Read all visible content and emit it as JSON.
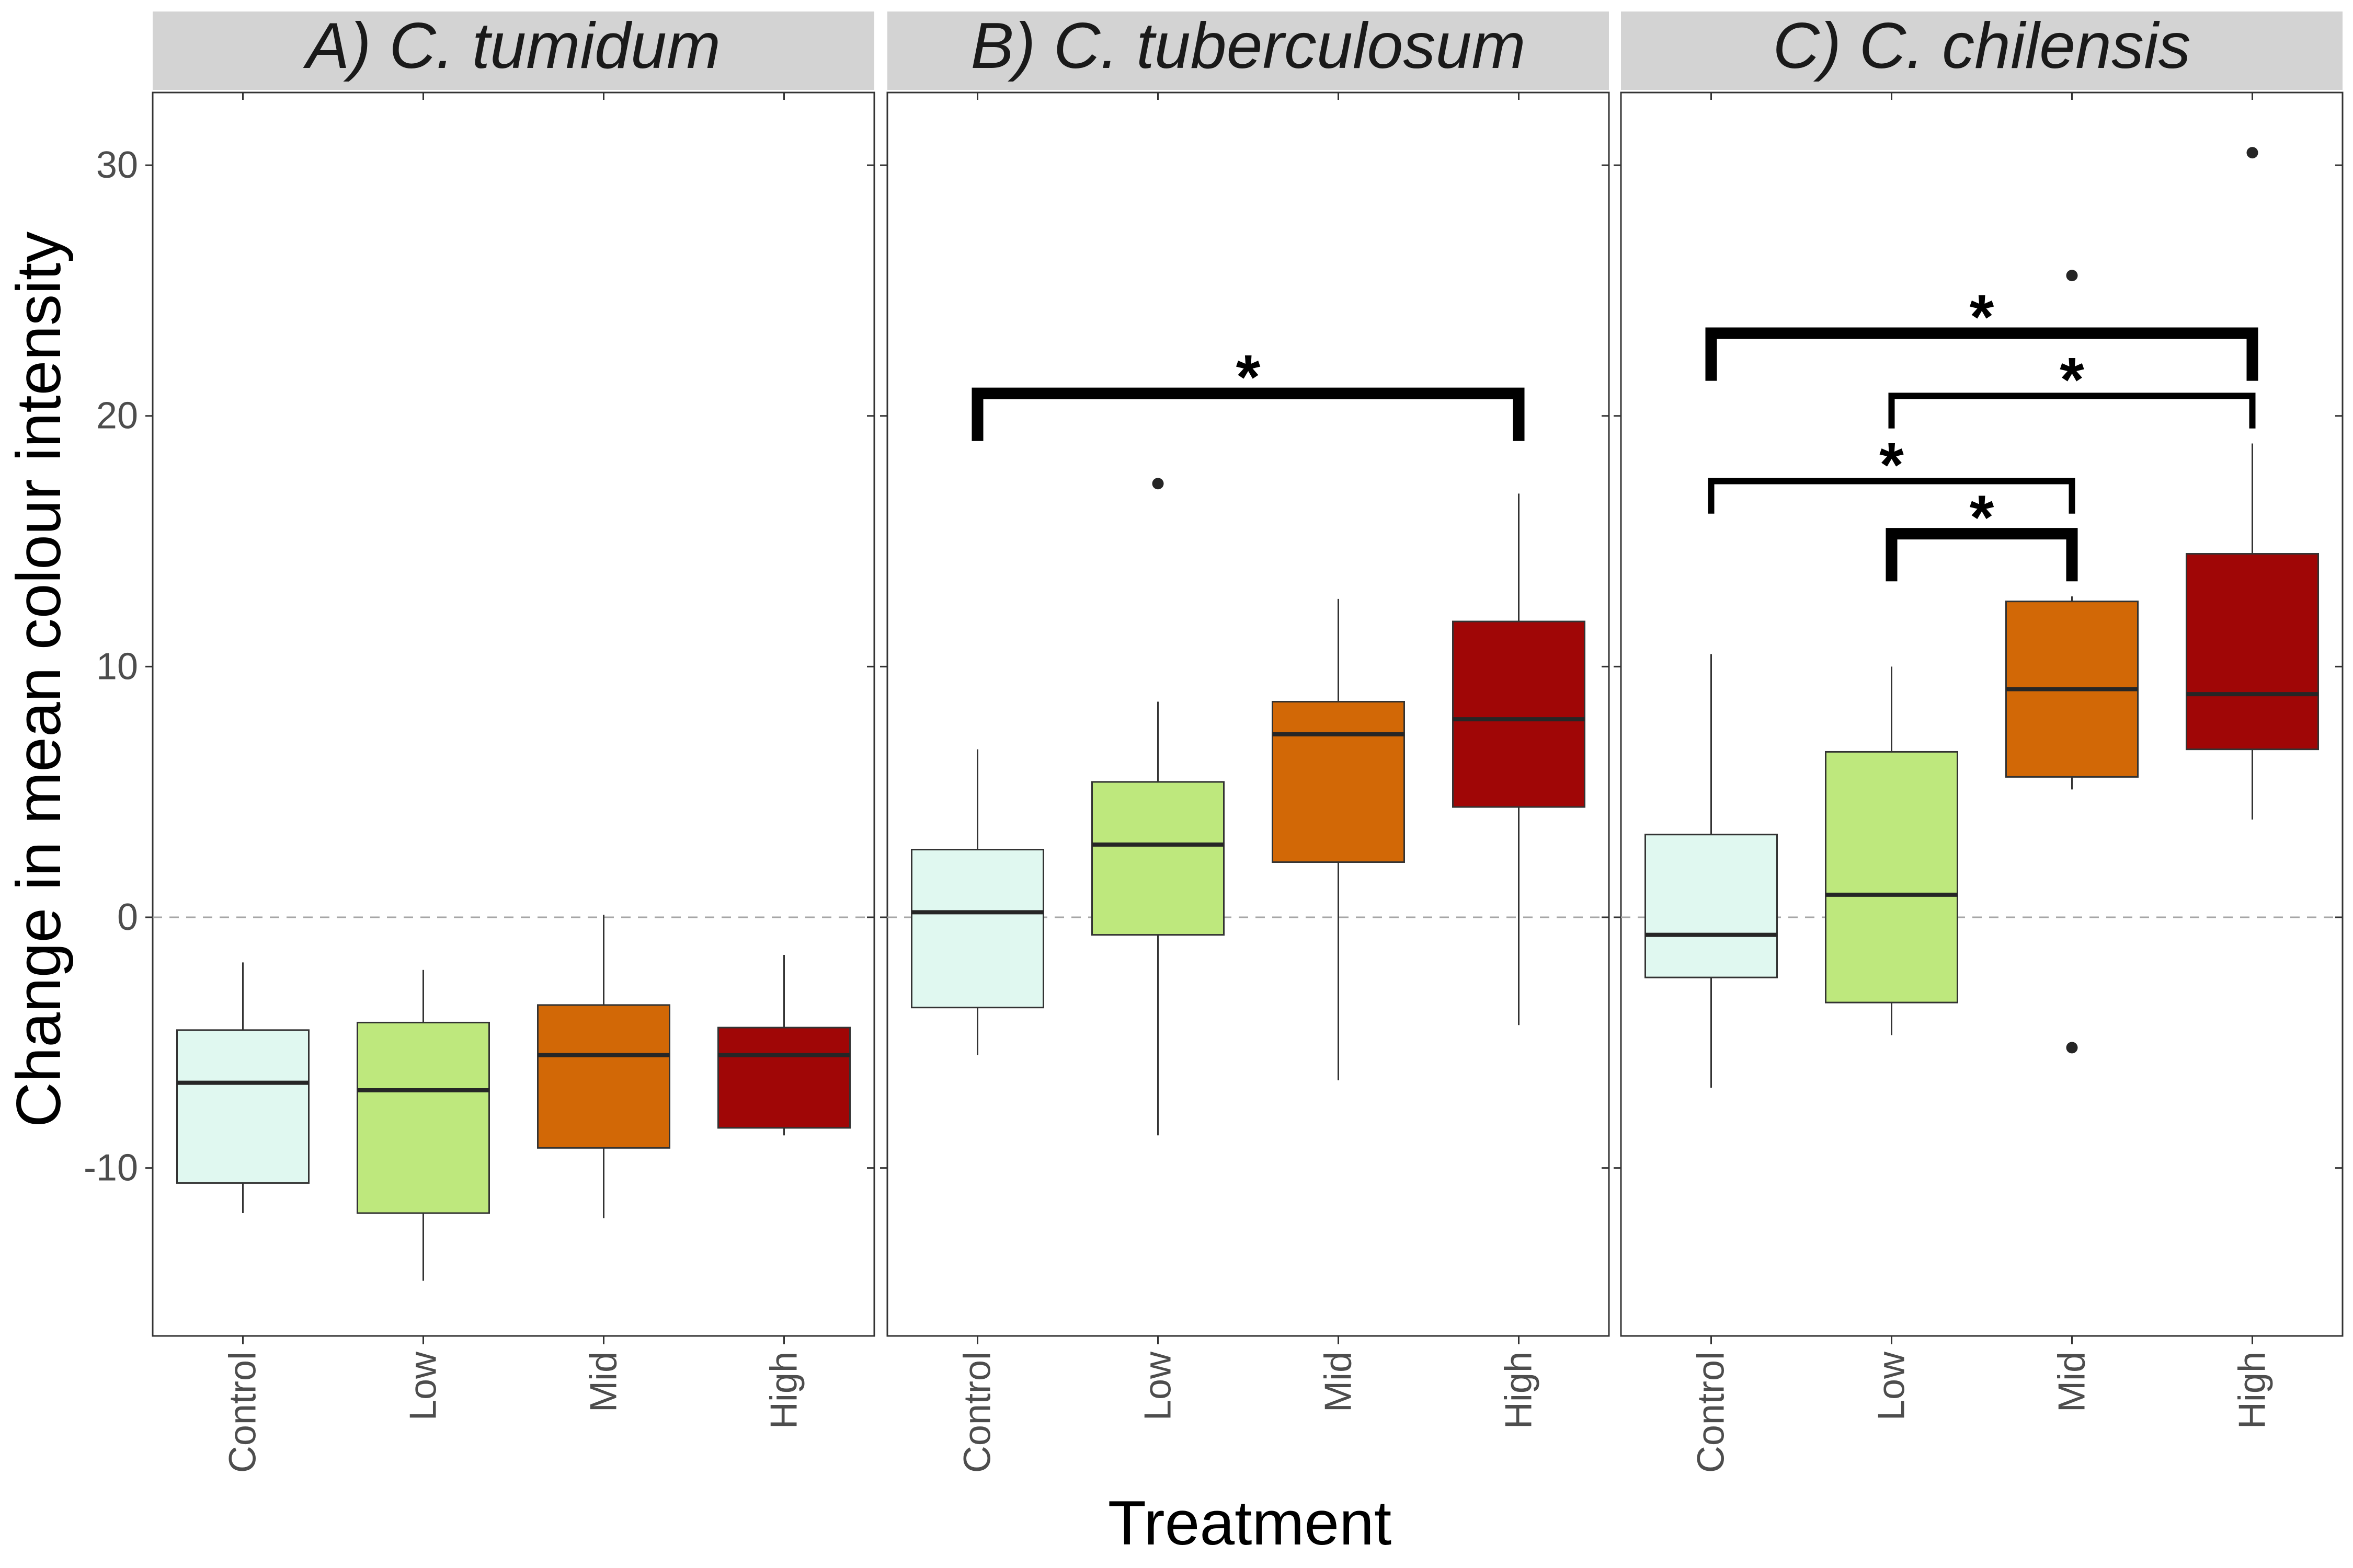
{
  "chart_data": {
    "type": "box",
    "ylabel": "Change in mean colour intensity",
    "xlabel": "Treatment",
    "ylim": [
      -16.7,
      32.9
    ],
    "yticks": [
      -10,
      0,
      10,
      20,
      30
    ],
    "ytick_labels": [
      "-10",
      "0",
      "10",
      "20",
      "30"
    ],
    "reference_line": 0,
    "categories": [
      "Control",
      "Low",
      "Mid",
      "High"
    ],
    "colors": {
      "Control": "#e0f8f0",
      "Low": "#bee87d",
      "Mid": "#d26806",
      "High": "#a00606"
    },
    "panels": [
      {
        "title": "A) C. tumidum",
        "boxes": [
          {
            "category": "Control",
            "whisker_low": -11.8,
            "q1": -10.6,
            "median": -6.6,
            "q3": -4.5,
            "whisker_high": -1.8,
            "outliers": []
          },
          {
            "category": "Low",
            "whisker_low": -14.5,
            "q1": -11.8,
            "median": -6.9,
            "q3": -4.2,
            "whisker_high": -2.1,
            "outliers": []
          },
          {
            "category": "Mid",
            "whisker_low": -12.0,
            "q1": -9.2,
            "median": -5.5,
            "q3": -3.5,
            "whisker_high": 0.1,
            "outliers": []
          },
          {
            "category": "High",
            "whisker_low": -8.7,
            "q1": -8.4,
            "median": -5.5,
            "q3": -4.4,
            "whisker_high": -1.5,
            "outliers": []
          }
        ],
        "brackets": []
      },
      {
        "title": "B) C. tuberculosum",
        "boxes": [
          {
            "category": "Control",
            "whisker_low": -5.5,
            "q1": -3.6,
            "median": 0.2,
            "q3": 2.7,
            "whisker_high": 6.7,
            "outliers": []
          },
          {
            "category": "Low",
            "whisker_low": -8.7,
            "q1": -0.7,
            "median": 2.9,
            "q3": 5.4,
            "whisker_high": 8.6,
            "outliers": [
              17.3
            ]
          },
          {
            "category": "Mid",
            "whisker_low": -6.5,
            "q1": 2.2,
            "median": 7.3,
            "q3": 8.6,
            "whisker_high": 12.7,
            "outliers": []
          },
          {
            "category": "High",
            "whisker_low": -4.3,
            "q1": 4.4,
            "median": 7.9,
            "q3": 11.8,
            "whisker_high": 16.9,
            "outliers": []
          }
        ],
        "brackets": [
          {
            "from": "Control",
            "to": "High",
            "y": 20.9,
            "drop": 1.9,
            "weight": "thick",
            "label": "*"
          }
        ]
      },
      {
        "title": "C) C. chilensis",
        "boxes": [
          {
            "category": "Control",
            "whisker_low": -6.8,
            "q1": -2.4,
            "median": -0.7,
            "q3": 3.3,
            "whisker_high": 10.5,
            "outliers": []
          },
          {
            "category": "Low",
            "whisker_low": -4.7,
            "q1": -3.4,
            "median": 0.9,
            "q3": 6.6,
            "whisker_high": 10.0,
            "outliers": []
          },
          {
            "category": "Mid",
            "whisker_low": 5.1,
            "q1": 5.6,
            "median": 9.1,
            "q3": 12.6,
            "whisker_high": 12.8,
            "outliers": [
              25.6,
              -5.2
            ]
          },
          {
            "category": "High",
            "whisker_low": 3.9,
            "q1": 6.7,
            "median": 8.9,
            "q3": 14.5,
            "whisker_high": 18.9,
            "outliers": [
              30.5
            ]
          }
        ],
        "brackets": [
          {
            "from": "Control",
            "to": "High",
            "y": 23.3,
            "drop": 1.9,
            "weight": "thick",
            "label": "*"
          },
          {
            "from": "Low",
            "to": "High",
            "y": 20.8,
            "drop": 1.3,
            "weight": "medium",
            "label": "*"
          },
          {
            "from": "Control",
            "to": "Mid",
            "y": 17.4,
            "drop": 1.3,
            "weight": "medium",
            "label": "*"
          },
          {
            "from": "Low",
            "to": "Mid",
            "y": 15.3,
            "drop": 1.9,
            "weight": "thick",
            "label": "*"
          }
        ]
      }
    ]
  }
}
